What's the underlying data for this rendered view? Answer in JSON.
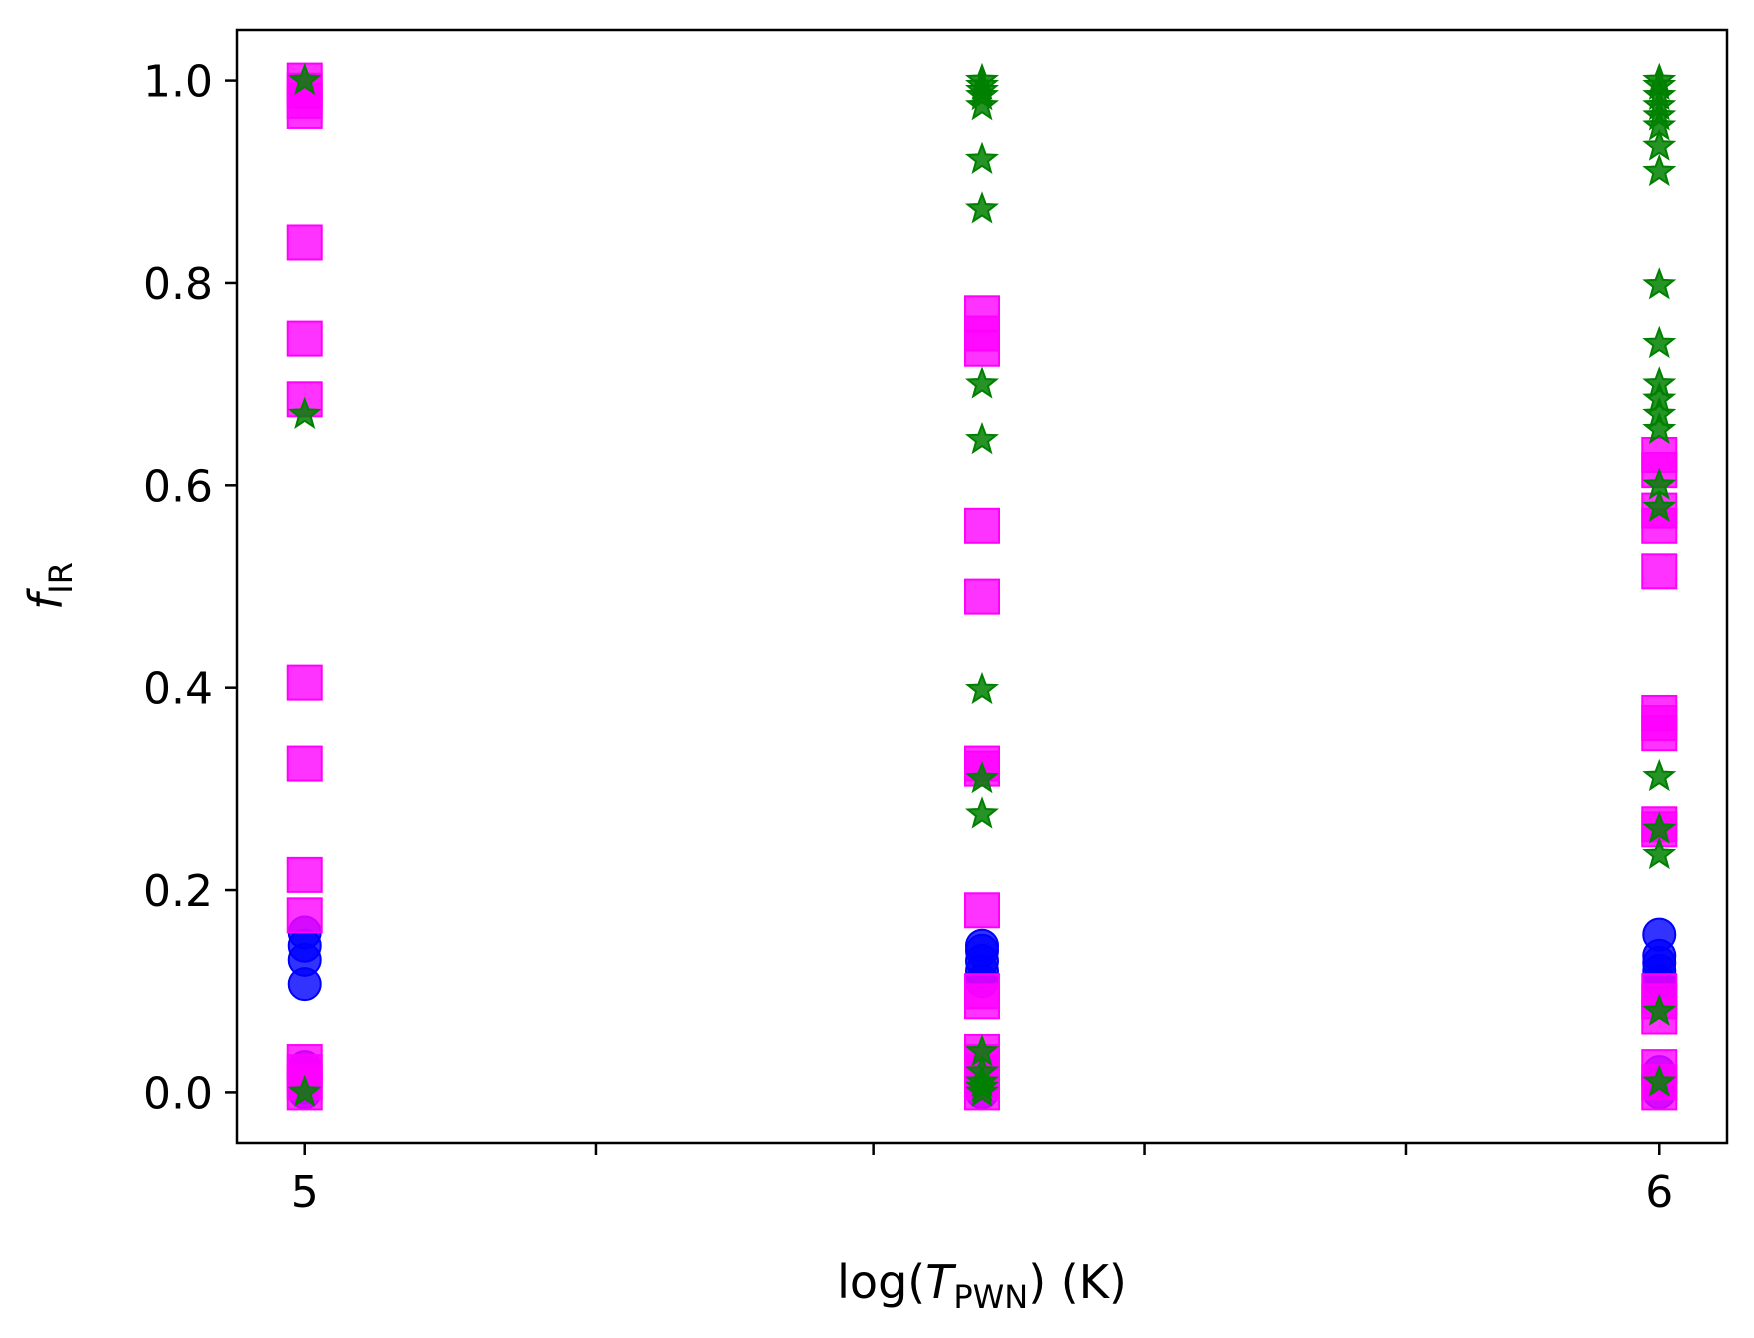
{
  "chart_data": {
    "type": "scatter",
    "xlabel": {
      "prefix": "log(",
      "var": "T",
      "sub": "PWN",
      "suffix": ") (K)"
    },
    "ylabel": {
      "var": "f",
      "sub": "IR"
    },
    "xlim": [
      4.95,
      6.05
    ],
    "ylim": [
      -0.05,
      1.05
    ],
    "x_ticks": [
      5,
      5.215,
      5.42,
      5.62,
      5.813,
      6
    ],
    "x_tick_labels": [
      "5",
      "",
      "",
      "",
      "",
      "6"
    ],
    "y_ticks": [
      0.0,
      0.2,
      0.4,
      0.6,
      0.8,
      1.0
    ],
    "y_tick_labels": [
      "0.0",
      "0.2",
      "0.4",
      "0.6",
      "0.8",
      "1.0"
    ],
    "grid": false,
    "series": [
      {
        "marker": "circle",
        "color": "#0000ff",
        "points": [
          [
            5,
            0.0
          ],
          [
            5,
            0.005
          ],
          [
            5,
            0.01
          ],
          [
            5,
            0.015
          ],
          [
            5,
            0.02
          ],
          [
            5,
            0.025
          ],
          [
            5,
            0.107
          ],
          [
            5,
            0.131
          ],
          [
            5,
            0.145
          ],
          [
            5,
            0.158
          ],
          [
            5.5,
            0.0
          ],
          [
            5.5,
            0.01
          ],
          [
            5.5,
            0.02
          ],
          [
            5.5,
            0.11
          ],
          [
            5.5,
            0.12
          ],
          [
            5.5,
            0.13
          ],
          [
            5.5,
            0.14
          ],
          [
            5.5,
            0.145
          ],
          [
            6,
            0.0
          ],
          [
            6,
            0.01
          ],
          [
            6,
            0.02
          ],
          [
            6,
            0.1
          ],
          [
            6,
            0.11
          ],
          [
            6,
            0.12
          ],
          [
            6,
            0.128
          ],
          [
            6,
            0.135
          ],
          [
            6,
            0.156
          ]
        ]
      },
      {
        "marker": "square",
        "color": "#ff00ff",
        "points": [
          [
            5,
            0.0
          ],
          [
            5,
            0.01
          ],
          [
            5,
            0.02
          ],
          [
            5,
            0.03
          ],
          [
            5,
            0.175
          ],
          [
            5,
            0.215
          ],
          [
            5,
            0.325
          ],
          [
            5,
            0.405
          ],
          [
            5,
            0.685
          ],
          [
            5,
            0.745
          ],
          [
            5,
            0.84
          ],
          [
            5,
            0.97
          ],
          [
            5,
            0.98
          ],
          [
            5,
            0.99
          ],
          [
            5,
            1.0
          ],
          [
            5.5,
            0.0
          ],
          [
            5.5,
            0.01
          ],
          [
            5.5,
            0.02
          ],
          [
            5.5,
            0.03
          ],
          [
            5.5,
            0.04
          ],
          [
            5.5,
            0.09
          ],
          [
            5.5,
            0.1
          ],
          [
            5.5,
            0.18
          ],
          [
            5.5,
            0.32
          ],
          [
            5.5,
            0.325
          ],
          [
            5.5,
            0.49
          ],
          [
            5.5,
            0.56
          ],
          [
            5.5,
            0.735
          ],
          [
            5.5,
            0.75
          ],
          [
            5.5,
            0.77
          ],
          [
            6,
            0.0
          ],
          [
            6,
            0.01
          ],
          [
            6,
            0.025
          ],
          [
            6,
            0.075
          ],
          [
            6,
            0.09
          ],
          [
            6,
            0.1
          ],
          [
            6,
            0.26
          ],
          [
            6,
            0.265
          ],
          [
            6,
            0.355
          ],
          [
            6,
            0.365
          ],
          [
            6,
            0.375
          ],
          [
            6,
            0.515
          ],
          [
            6,
            0.56
          ],
          [
            6,
            0.575
          ],
          [
            6,
            0.615
          ],
          [
            6,
            0.63
          ]
        ]
      },
      {
        "marker": "star",
        "color": "#008000",
        "points": [
          [
            5,
            0.0
          ],
          [
            5,
            0.67
          ],
          [
            5,
            1.0
          ],
          [
            5.5,
            0.0
          ],
          [
            5.5,
            0.005
          ],
          [
            5.5,
            0.01
          ],
          [
            5.5,
            0.02
          ],
          [
            5.5,
            0.04
          ],
          [
            5.5,
            0.275
          ],
          [
            5.5,
            0.31
          ],
          [
            5.5,
            0.398
          ],
          [
            5.5,
            0.645
          ],
          [
            5.5,
            0.7
          ],
          [
            5.5,
            0.873
          ],
          [
            5.5,
            0.922
          ],
          [
            5.5,
            0.975
          ],
          [
            5.5,
            0.985
          ],
          [
            5.5,
            0.99
          ],
          [
            5.5,
            0.995
          ],
          [
            5.5,
            1.0
          ],
          [
            6,
            0.01
          ],
          [
            6,
            0.08
          ],
          [
            6,
            0.235
          ],
          [
            6,
            0.26
          ],
          [
            6,
            0.312
          ],
          [
            6,
            0.578
          ],
          [
            6,
            0.6
          ],
          [
            6,
            0.655
          ],
          [
            6,
            0.67
          ],
          [
            6,
            0.685
          ],
          [
            6,
            0.7
          ],
          [
            6,
            0.74
          ],
          [
            6,
            0.798
          ],
          [
            6,
            0.91
          ],
          [
            6,
            0.935
          ],
          [
            6,
            0.955
          ],
          [
            6,
            0.965
          ],
          [
            6,
            0.975
          ],
          [
            6,
            0.985
          ],
          [
            6,
            0.995
          ],
          [
            6,
            1.0
          ]
        ]
      }
    ]
  }
}
